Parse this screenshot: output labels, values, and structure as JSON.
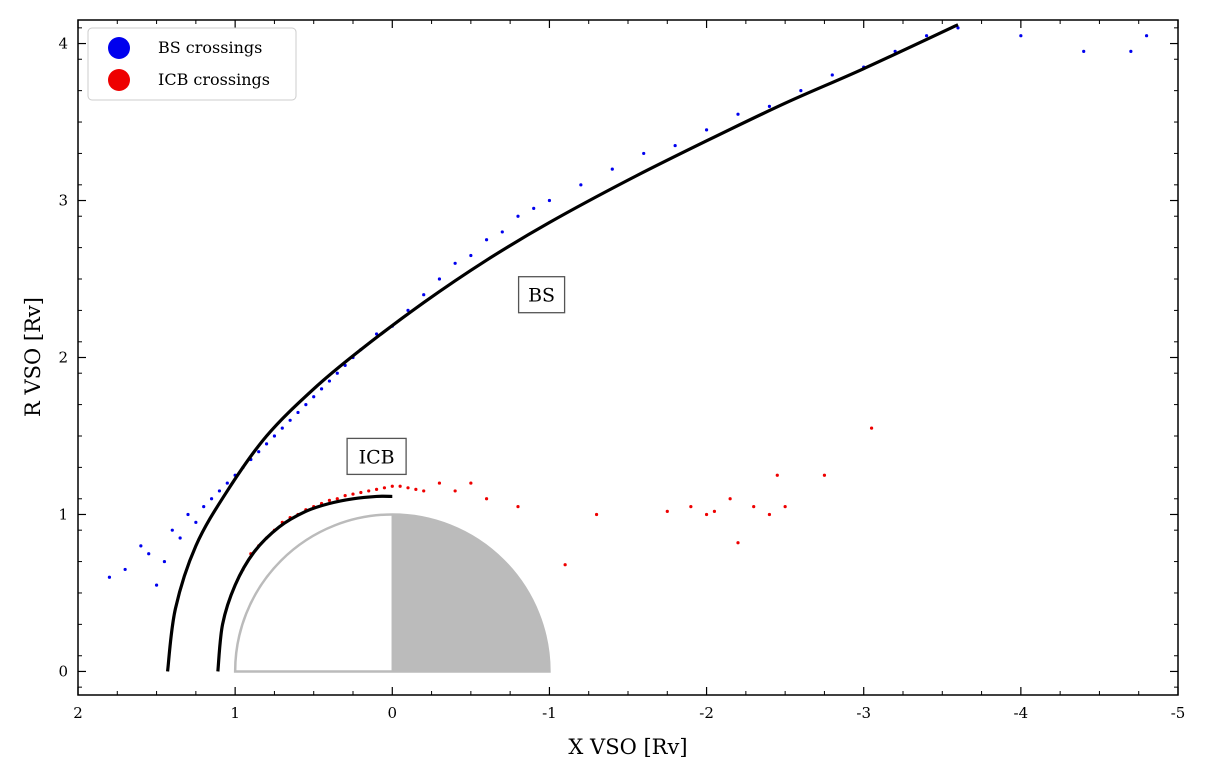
{
  "chart_data": {
    "type": "scatter",
    "title": "",
    "xlabel": "X VSO [Rv]",
    "ylabel": "R VSO [Rv]",
    "xlim": [
      2,
      -5
    ],
    "ylim": [
      -0.15,
      4.15
    ],
    "x_ticks": [
      2,
      1,
      0,
      -1,
      -2,
      -3,
      -4,
      -5
    ],
    "y_ticks": [
      0,
      1,
      2,
      3,
      4
    ],
    "grid": false,
    "legend_position": "top-left",
    "series": [
      {
        "name": "BS crossings",
        "color": "#0000ee",
        "marker": "dot",
        "points": [
          [
            1.8,
            0.6
          ],
          [
            1.7,
            0.65
          ],
          [
            1.6,
            0.8
          ],
          [
            1.55,
            0.75
          ],
          [
            1.5,
            0.55
          ],
          [
            1.45,
            0.7
          ],
          [
            1.4,
            0.9
          ],
          [
            1.35,
            0.85
          ],
          [
            1.3,
            1.0
          ],
          [
            1.25,
            0.95
          ],
          [
            1.2,
            1.05
          ],
          [
            1.15,
            1.1
          ],
          [
            1.1,
            1.15
          ],
          [
            1.05,
            1.2
          ],
          [
            1.0,
            1.25
          ],
          [
            0.95,
            1.3
          ],
          [
            0.9,
            1.35
          ],
          [
            0.85,
            1.4
          ],
          [
            0.8,
            1.45
          ],
          [
            0.75,
            1.5
          ],
          [
            0.7,
            1.55
          ],
          [
            0.65,
            1.6
          ],
          [
            0.6,
            1.65
          ],
          [
            0.55,
            1.7
          ],
          [
            0.5,
            1.75
          ],
          [
            0.45,
            1.8
          ],
          [
            0.4,
            1.85
          ],
          [
            0.35,
            1.9
          ],
          [
            0.3,
            1.95
          ],
          [
            0.25,
            2.0
          ],
          [
            0.2,
            2.05
          ],
          [
            0.1,
            2.15
          ],
          [
            0.0,
            2.2
          ],
          [
            -0.1,
            2.3
          ],
          [
            -0.2,
            2.4
          ],
          [
            -0.3,
            2.5
          ],
          [
            -0.4,
            2.6
          ],
          [
            -0.5,
            2.65
          ],
          [
            -0.6,
            2.75
          ],
          [
            -0.7,
            2.8
          ],
          [
            -0.8,
            2.9
          ],
          [
            -0.9,
            2.95
          ],
          [
            -1.0,
            3.0
          ],
          [
            -1.2,
            3.1
          ],
          [
            -1.4,
            3.2
          ],
          [
            -1.6,
            3.3
          ],
          [
            -1.8,
            3.35
          ],
          [
            -2.0,
            3.45
          ],
          [
            -2.2,
            3.55
          ],
          [
            -2.4,
            3.6
          ],
          [
            -2.6,
            3.7
          ],
          [
            -2.8,
            3.8
          ],
          [
            -3.0,
            3.85
          ],
          [
            -3.2,
            3.95
          ],
          [
            -3.4,
            4.05
          ],
          [
            -3.6,
            4.1
          ],
          [
            -4.0,
            4.05
          ],
          [
            -4.4,
            3.95
          ],
          [
            -4.7,
            3.95
          ],
          [
            -4.8,
            4.05
          ]
        ]
      },
      {
        "name": "ICB crossings",
        "color": "#ee0000",
        "marker": "dot",
        "points": [
          [
            0.95,
            0.65
          ],
          [
            0.9,
            0.75
          ],
          [
            0.85,
            0.8
          ],
          [
            0.8,
            0.85
          ],
          [
            0.75,
            0.9
          ],
          [
            0.7,
            0.95
          ],
          [
            0.65,
            0.98
          ],
          [
            0.6,
            1.0
          ],
          [
            0.55,
            1.03
          ],
          [
            0.5,
            1.05
          ],
          [
            0.45,
            1.07
          ],
          [
            0.4,
            1.09
          ],
          [
            0.35,
            1.1
          ],
          [
            0.3,
            1.12
          ],
          [
            0.25,
            1.13
          ],
          [
            0.2,
            1.14
          ],
          [
            0.15,
            1.15
          ],
          [
            0.1,
            1.16
          ],
          [
            0.05,
            1.17
          ],
          [
            0.0,
            1.18
          ],
          [
            -0.05,
            1.18
          ],
          [
            -0.1,
            1.17
          ],
          [
            -0.15,
            1.16
          ],
          [
            -0.2,
            1.15
          ],
          [
            -0.3,
            1.2
          ],
          [
            -0.4,
            1.15
          ],
          [
            -0.5,
            1.2
          ],
          [
            -0.6,
            1.1
          ],
          [
            -0.8,
            1.05
          ],
          [
            -1.1,
            0.68
          ],
          [
            -1.3,
            1.0
          ],
          [
            -1.75,
            1.02
          ],
          [
            -1.9,
            1.05
          ],
          [
            -2.0,
            1.0
          ],
          [
            -2.05,
            1.02
          ],
          [
            -2.15,
            1.1
          ],
          [
            -2.2,
            0.82
          ],
          [
            -2.3,
            1.05
          ],
          [
            -2.4,
            1.0
          ],
          [
            -2.45,
            1.25
          ],
          [
            -2.5,
            1.05
          ],
          [
            -2.75,
            1.25
          ],
          [
            -3.05,
            1.55
          ]
        ]
      }
    ],
    "fit_curves": [
      {
        "label": "BS",
        "color": "#000000",
        "x": [
          1.43,
          1.38,
          1.25,
          1.05,
          0.8,
          0.5,
          0.2,
          -0.2,
          -0.6,
          -1.0,
          -1.5,
          -2.0,
          -2.5,
          -3.0,
          -3.6
        ],
        "y": [
          0.0,
          0.4,
          0.8,
          1.15,
          1.5,
          1.8,
          2.05,
          2.35,
          2.62,
          2.86,
          3.13,
          3.38,
          3.62,
          3.84,
          4.12
        ]
      },
      {
        "label": "ICB",
        "color": "#000000",
        "x": [
          1.11,
          1.08,
          1.0,
          0.88,
          0.72,
          0.55,
          0.4,
          0.25,
          0.1,
          0.0
        ],
        "y": [
          0.0,
          0.3,
          0.55,
          0.76,
          0.92,
          1.02,
          1.07,
          1.1,
          1.115,
          1.115
        ]
      }
    ],
    "planet": {
      "radius": 1,
      "dayside_fill": "#ffffff",
      "nightside_fill": "#bbbbbb",
      "outline": "#bbbbbb"
    },
    "annotations": [
      {
        "text": "BS",
        "x": -0.95,
        "y": 2.4
      },
      {
        "text": "ICB",
        "x": 0.1,
        "y": 1.37
      }
    ]
  }
}
